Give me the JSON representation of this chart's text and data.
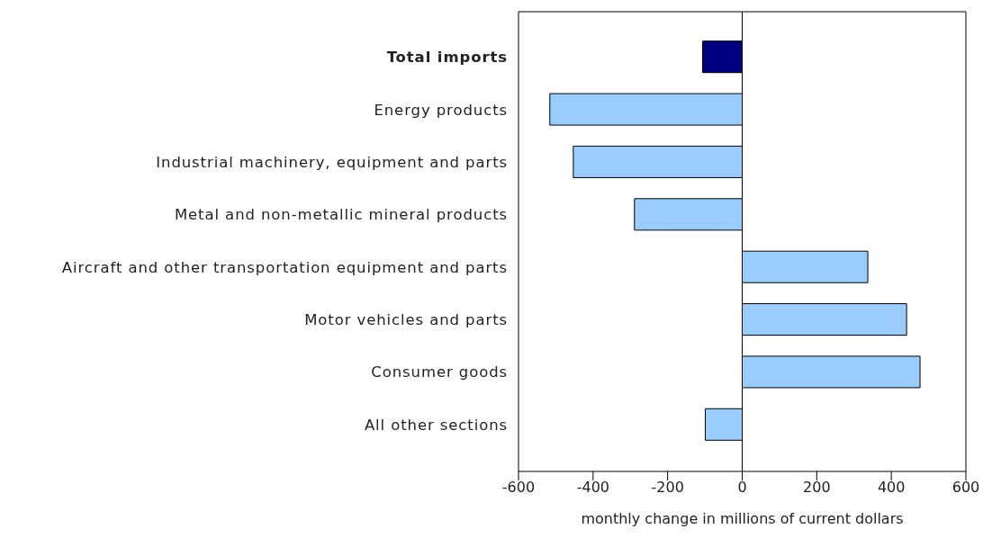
{
  "chart_data": {
    "type": "bar",
    "orientation": "horizontal",
    "xlabel": "monthly change in millions of current dollars",
    "categories": [
      "Total imports",
      "Energy products",
      "Industrial machinery, equipment and parts",
      "Metal and non-metallic mineral products",
      "Aircraft and other transportation equipment and parts",
      "Motor vehicles and parts",
      "Consumer goods",
      "All other sections"
    ],
    "values": [
      -106,
      -516,
      -453,
      -289,
      337,
      441,
      477,
      -99
    ],
    "colors": [
      "#000080",
      "#99ccff",
      "#99ccff",
      "#99ccff",
      "#99ccff",
      "#99ccff",
      "#99ccff",
      "#99ccff"
    ],
    "xlim": [
      -600,
      600
    ],
    "xticks": [
      -600,
      -400,
      -200,
      0,
      200,
      400,
      600
    ],
    "ref_lines": [
      {
        "axis": "x",
        "value": 0,
        "color": "#000000"
      }
    ]
  }
}
